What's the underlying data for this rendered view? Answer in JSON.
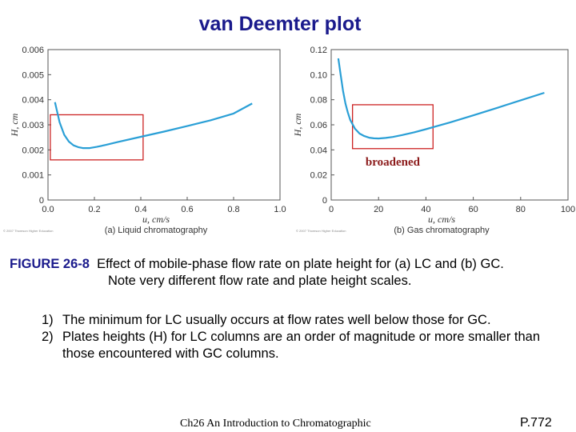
{
  "title": "van Deemter plot",
  "chart_data": [
    {
      "type": "line",
      "ylabel": "H, cm",
      "xlabel": "u, cm/s",
      "caption": "(a) Liquid chromatography",
      "copyright": "© 2007 Thomson Higher Education",
      "xlim": [
        0,
        1.0
      ],
      "ylim": [
        0,
        0.006
      ],
      "xticks": [
        "0.0",
        "0.2",
        "0.4",
        "0.6",
        "0.8",
        "1.0"
      ],
      "yticks": [
        "0",
        "0.001",
        "0.002",
        "0.003",
        "0.004",
        "0.005",
        "0.006"
      ],
      "series": [
        {
          "x": [
            0.03,
            0.05,
            0.07,
            0.09,
            0.11,
            0.13,
            0.15,
            0.18,
            0.21,
            0.25,
            0.3,
            0.4,
            0.5,
            0.6,
            0.7,
            0.8,
            0.88
          ],
          "values": [
            0.0039,
            0.0031,
            0.0026,
            0.00233,
            0.00218,
            0.00211,
            0.00207,
            0.00207,
            0.00212,
            0.0022,
            0.00231,
            0.00252,
            0.00273,
            0.00295,
            0.00318,
            0.00345,
            0.00385
          ]
        }
      ],
      "highlight_box": {
        "x": [
          0.01,
          0.41
        ],
        "y": [
          0.0016,
          0.0034
        ]
      }
    },
    {
      "type": "line",
      "ylabel": "H, cm",
      "xlabel": "u, cm/s",
      "caption": "(b) Gas chromatography",
      "copyright": "© 2007 Thomson Higher Education",
      "annotation": "broadened",
      "xlim": [
        0,
        100
      ],
      "ylim": [
        0,
        0.12
      ],
      "xticks": [
        "0",
        "20",
        "40",
        "60",
        "80",
        "100"
      ],
      "yticks": [
        "0",
        "0.02",
        "0.04",
        "0.06",
        "0.08",
        "0.10",
        "0.12"
      ],
      "series": [
        {
          "x": [
            3,
            4,
            5,
            6,
            7,
            8,
            10,
            12,
            14,
            16,
            18,
            20,
            23,
            26,
            30,
            35,
            40,
            45,
            50,
            60,
            70,
            80,
            90
          ],
          "values": [
            0.113,
            0.1,
            0.087,
            0.077,
            0.07,
            0.064,
            0.057,
            0.053,
            0.051,
            0.0497,
            0.0492,
            0.0491,
            0.0495,
            0.0503,
            0.0518,
            0.054,
            0.0565,
            0.0592,
            0.0618,
            0.0675,
            0.0735,
            0.0795,
            0.0855
          ]
        }
      ],
      "highlight_box": {
        "x": [
          9,
          43
        ],
        "y": [
          0.041,
          0.076
        ]
      }
    }
  ],
  "figure": {
    "label": "FIGURE 26-8",
    "line1": "Effect of mobile-phase flow rate on plate height for (a) LC and (b) GC.",
    "line2": "Note very different flow rate and plate height scales."
  },
  "notes": [
    {
      "num": "1)",
      "text": "The minimum for LC usually occurs at flow rates well below those for GC."
    },
    {
      "num": "2)",
      "text": "Plates heights (H) for LC columns are an order of magnitude or more smaller than those encountered with GC columns."
    }
  ],
  "footer": "Ch26 An Introduction to Chromatographic",
  "page_number": "P.772",
  "colors": {
    "title": "#1a1a8c",
    "curve": "#2a9fd6",
    "box": "#cc2222",
    "annotation": "#8b1a1a"
  }
}
